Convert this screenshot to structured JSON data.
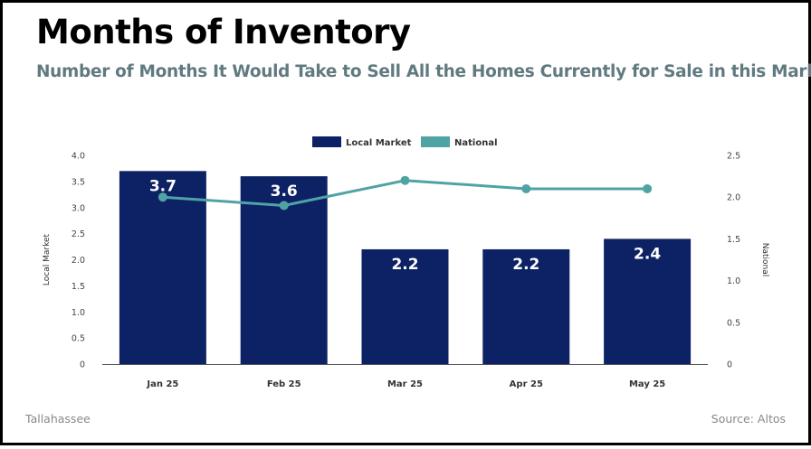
{
  "header": {
    "title": "Months of Inventory",
    "subtitle": "Number of Months It Would Take to Sell All the Homes Currently for Sale in this Market"
  },
  "footer": {
    "location": "Tallahassee",
    "source": "Source: Altos"
  },
  "colors": {
    "local": "#0d2265",
    "national": "#4fa3a5",
    "title": "#000000",
    "subtitle": "#607a80"
  },
  "chart_data": {
    "type": "bar",
    "categories": [
      "Jan 25",
      "Feb 25",
      "Mar 25",
      "Apr 25",
      "May 25"
    ],
    "series": [
      {
        "name": "Local Market",
        "type": "bar",
        "axis": "left",
        "values": [
          3.7,
          3.6,
          2.2,
          2.2,
          2.4
        ],
        "labels": [
          "3.7",
          "3.6",
          "2.2",
          "2.2",
          "2.4"
        ]
      },
      {
        "name": "National",
        "type": "line",
        "axis": "right",
        "values": [
          2.0,
          1.9,
          2.2,
          2.1,
          2.1
        ]
      }
    ],
    "ylabel": "Local Market",
    "y2label": "National",
    "ylim": [
      0,
      4.0
    ],
    "y2lim": [
      0,
      2.5
    ],
    "yticks": [
      "0",
      "0.5",
      "1.0",
      "1.5",
      "2.0",
      "2.5",
      "3.0",
      "3.5",
      "4.0"
    ],
    "y2ticks": [
      "0",
      "0.5",
      "1.0",
      "1.5",
      "2.0",
      "2.5"
    ],
    "grid": false,
    "legend_position": "top-center"
  }
}
